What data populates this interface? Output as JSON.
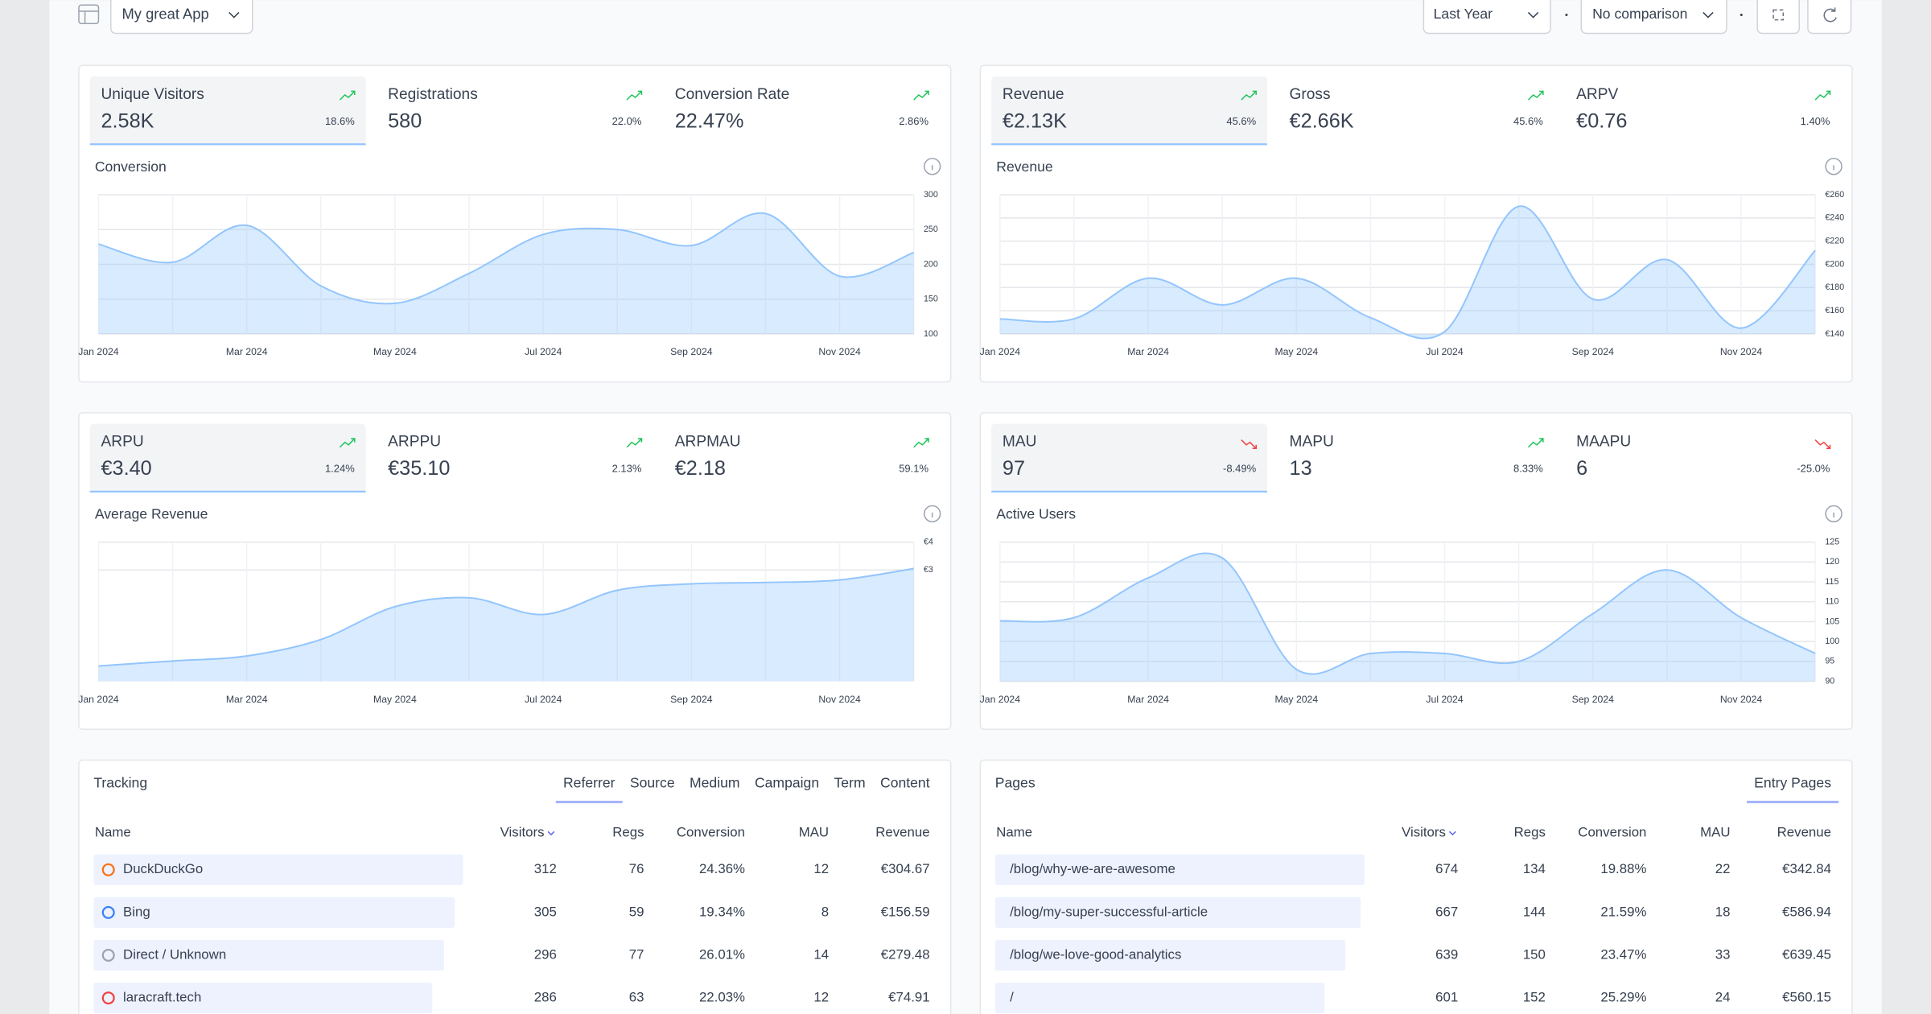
{
  "header": {
    "app": "My great App",
    "period": "Last Year",
    "comparison": "No comparison"
  },
  "panels": [
    {
      "metrics": [
        {
          "label": "Unique Visitors",
          "value": "2.58K",
          "change": "18.6%"
        },
        {
          "label": "Registrations",
          "value": "580",
          "change": "22.0%"
        },
        {
          "label": "Conversion Rate",
          "value": "22.47%",
          "change": "2.86%"
        }
      ],
      "chart": {
        "type": "area",
        "title": "Conversion",
        "categories": [
          "Jan 2024",
          null,
          "Mar 2024",
          null,
          "May 2024",
          null,
          "Jul 2024",
          null,
          "Sep 2024",
          null,
          "Nov 2024",
          null
        ],
        "values": [
          229,
          203,
          256,
          169,
          144,
          187,
          243,
          250,
          227,
          273,
          183,
          217
        ],
        "ylim": [
          100,
          300
        ],
        "yticks": [
          100,
          150,
          200,
          250,
          300
        ],
        "color": "#93c5fd"
      }
    },
    {
      "metrics": [
        {
          "label": "Revenue",
          "value": "€2.13K",
          "change": "45.6%"
        },
        {
          "label": "Gross",
          "value": "€2.66K",
          "change": "45.6%"
        },
        {
          "label": "ARPV",
          "value": "€0.76",
          "change": "1.40%"
        }
      ],
      "chart": {
        "type": "area",
        "title": "Revenue",
        "categories": [
          "Jan 2024",
          null,
          "Mar 2024",
          null,
          "May 2024",
          null,
          "Jul 2024",
          null,
          "Sep 2024",
          null,
          "Nov 2024",
          null
        ],
        "values": [
          153,
          153,
          188,
          165,
          188,
          154,
          142,
          250,
          170,
          204,
          145,
          212
        ],
        "ylim": [
          140,
          260
        ],
        "yticks": [
          {
            "value": 140,
            "label": "€140"
          },
          {
            "value": 160,
            "label": "€160"
          },
          {
            "value": 180,
            "label": "€180"
          },
          {
            "value": 200,
            "label": "€200"
          },
          {
            "value": 220,
            "label": "€220"
          },
          {
            "value": 240,
            "label": "€240"
          },
          {
            "value": 260,
            "label": "€260"
          }
        ],
        "color": "#93c5fd"
      }
    },
    {
      "metrics": [
        {
          "label": "ARPU",
          "value": "€3.40",
          "change": "1.24%"
        },
        {
          "label": "ARPPU",
          "value": "€35.10",
          "change": "2.13%"
        },
        {
          "label": "ARPMAU",
          "value": "€2.18",
          "change": "59.1%"
        }
      ],
      "chart": {
        "type": "area",
        "title": "Average Revenue",
        "categories": [
          "Jan 2024",
          null,
          "Mar 2024",
          null,
          "May 2024",
          null,
          "Jul 2024",
          null,
          "Sep 2024",
          null,
          "Nov 2024",
          null
        ],
        "values": [
          -0.45,
          -0.27,
          -0.09,
          0.5,
          1.68,
          2.0,
          1.4,
          2.27,
          2.5,
          2.55,
          2.64,
          3.05
        ],
        "ylim": [
          -1,
          4
        ],
        "yticks": [
          {
            "value": 3,
            "label": "€3"
          },
          {
            "value": 4,
            "label": "€4"
          }
        ],
        "color": "#93c5fd"
      }
    },
    {
      "metrics": [
        {
          "label": "MAU",
          "value": "97",
          "change": "-8.49%"
        },
        {
          "label": "MAPU",
          "value": "13",
          "change": "8.33%"
        },
        {
          "label": "MAAPU",
          "value": "6",
          "change": "-25.0%"
        }
      ],
      "chart": {
        "type": "area",
        "title": "Active Users",
        "categories": [
          "Jan 2024",
          null,
          "Mar 2024",
          null,
          "May 2024",
          null,
          "Jul 2024",
          null,
          "Sep 2024",
          null,
          "Nov 2024",
          null
        ],
        "values": [
          105.2,
          106,
          116,
          121,
          93,
          97,
          97,
          95,
          107,
          118,
          106,
          97
        ],
        "ylim": [
          90,
          125
        ],
        "yticks": [
          90,
          95,
          100,
          105,
          110,
          115,
          120,
          125
        ],
        "color": "#93c5fd"
      }
    }
  ],
  "tables": [
    {
      "title": "Tracking",
      "tabs": [
        "Referrer",
        "Source",
        "Medium",
        "Campaign",
        "Term",
        "Content"
      ],
      "active_tab": 0,
      "columns": [
        "Name",
        "Visitors",
        "Regs",
        "Conversion",
        "MAU",
        "Revenue"
      ],
      "rows": [
        [
          "DuckDuckGo",
          312,
          76,
          "24.36%",
          12,
          "€304.67"
        ],
        [
          "Bing",
          305,
          59,
          "19.34%",
          8,
          "€156.59"
        ],
        [
          "Direct / Unknown",
          296,
          77,
          "26.01%",
          14,
          "€279.48"
        ],
        [
          "laracraft.tech",
          286,
          63,
          "22.03%",
          12,
          "€74.91"
        ]
      ]
    },
    {
      "title": "Pages",
      "tabs": [
        "Entry Pages"
      ],
      "active_tab": 0,
      "columns": [
        "Name",
        "Visitors",
        "Regs",
        "Conversion",
        "MAU",
        "Revenue"
      ],
      "rows": [
        [
          "/blog/why-we-are-awesome",
          674,
          134,
          "19.88%",
          22,
          "€342.84"
        ],
        [
          "/blog/my-super-successful-article",
          667,
          144,
          "21.59%",
          18,
          "€586.94"
        ],
        [
          "/blog/we-love-good-analytics",
          639,
          150,
          "23.47%",
          33,
          "€639.45"
        ],
        [
          "/",
          601,
          152,
          "25.29%",
          24,
          "€560.15"
        ]
      ]
    }
  ]
}
